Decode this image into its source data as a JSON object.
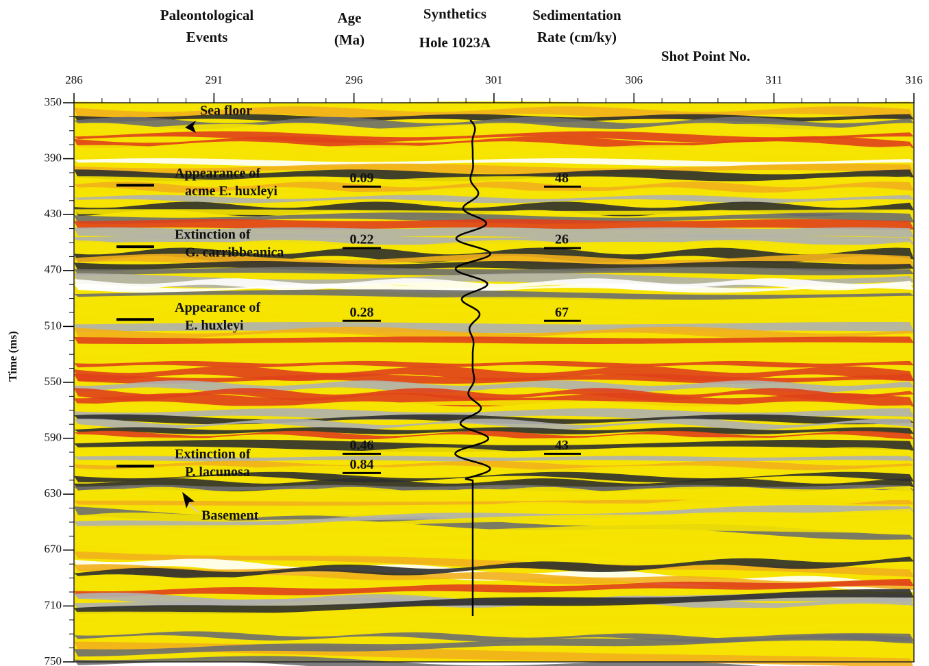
{
  "chart_data": {
    "type": "seismic",
    "xlabel": "Shot Point No.",
    "ylabel": "Time (ms)",
    "xlim": [
      286,
      316
    ],
    "xticks": [
      286,
      291,
      296,
      301,
      306,
      311,
      316
    ],
    "ylim": [
      350,
      750
    ],
    "yticks": [
      350,
      390,
      430,
      470,
      510,
      550,
      590,
      630,
      670,
      710,
      750
    ],
    "columns": [
      {
        "lines": [
          "Paleontological",
          "Events"
        ]
      },
      {
        "lines": [
          "Age",
          "(Ma)"
        ]
      },
      {
        "lines": [
          "Synthetics",
          "Hole 1023A"
        ]
      },
      {
        "lines": [
          "Sedimentation",
          "Rate (cm/ky)"
        ]
      }
    ],
    "annotations": {
      "sea_floor": "Sea floor",
      "basement": "Basement"
    },
    "events": [
      {
        "lines": [
          "Appearance of",
          "acme E. huxleyi"
        ],
        "time": 409,
        "ages": [
          0.09
        ],
        "rate": 48
      },
      {
        "lines": [
          "Extinction of",
          "G. carribbeanica"
        ],
        "time": 453,
        "ages": [
          0.22
        ],
        "rate": 26
      },
      {
        "lines": [
          "Appearance of",
          "E. huxleyi"
        ],
        "time": 505,
        "ages": [
          0.28
        ],
        "rate": 67
      },
      {
        "lines": [
          "Extinction of",
          "P. lacunosa"
        ],
        "time": 610,
        "ages": [
          0.46,
          0.84
        ],
        "rate": 43
      }
    ]
  }
}
